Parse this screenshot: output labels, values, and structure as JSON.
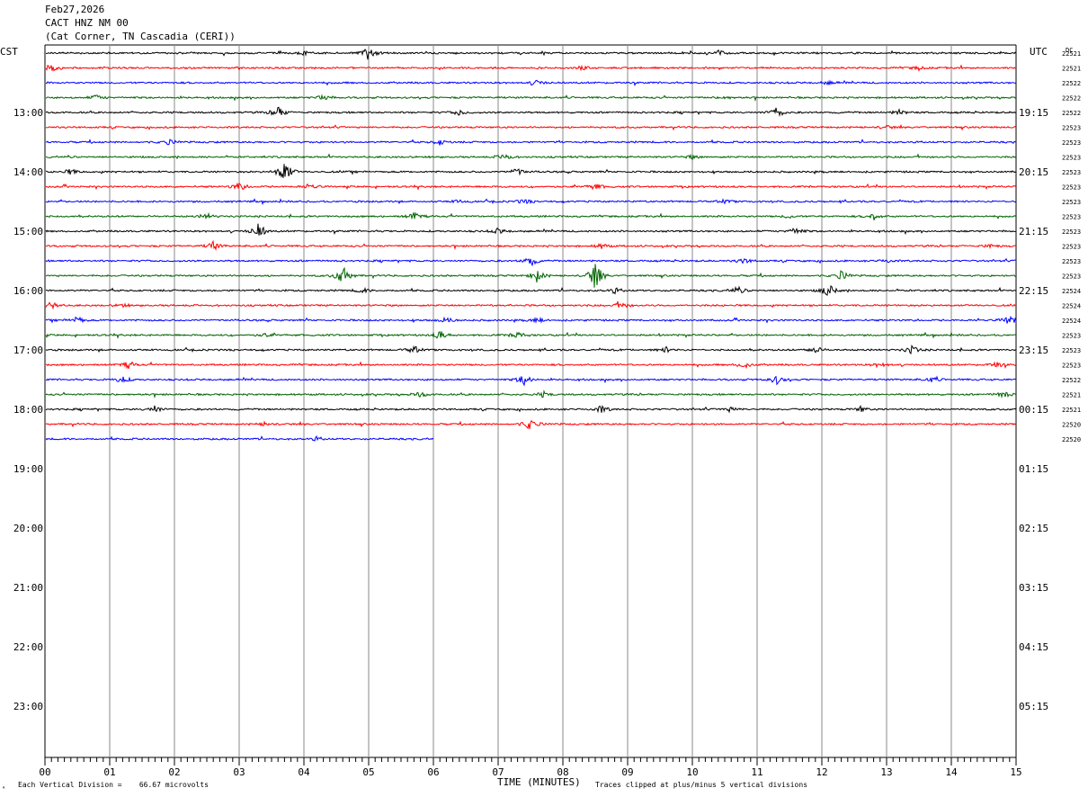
{
  "header": {
    "date": "Feb27,2026",
    "station": "CACT HNZ NM 00",
    "location": "(Cat Corner, TN Cascadia (CERI))"
  },
  "left_timezone": "CST",
  "right_timezone": "UTC",
  "dc_label": "DC",
  "footer": {
    "logo_mark": "ᴬ",
    "scale_note": "Each Vertical Division =    66.67 microvolts",
    "clip_note": "Traces clipped at plus/minus 5 vertical divisions"
  },
  "chart_data": {
    "type": "line",
    "title": "",
    "xlabel": "TIME (MINUTES)",
    "ylabel": "",
    "xlim": [
      0,
      15
    ],
    "x_ticks": [
      "00",
      "01",
      "02",
      "03",
      "04",
      "05",
      "06",
      "07",
      "08",
      "09",
      "10",
      "11",
      "12",
      "13",
      "14",
      "15"
    ],
    "y_tick_labels_left": [
      "13:00",
      "14:00",
      "15:00",
      "16:00",
      "17:00",
      "18:00",
      "19:00",
      "20:00",
      "21:00",
      "22:00",
      "23:00"
    ],
    "y_tick_labels_right": [
      "19:15",
      "20:15",
      "21:15",
      "22:15",
      "23:15",
      "00:15",
      "01:15",
      "02:15",
      "03:15",
      "04:15",
      "05:15"
    ],
    "trace_colors": [
      "#000000",
      "#ff0000",
      "#0000ff",
      "#006400"
    ],
    "traces": [
      {
        "row": 1,
        "dc": "22521",
        "minutes": 15,
        "events": [
          [
            5.0,
            8
          ],
          [
            10.4,
            3
          ],
          [
            4.0,
            2
          ]
        ]
      },
      {
        "row": 2,
        "dc": "22521",
        "minutes": 15,
        "events": [
          [
            0.1,
            5
          ],
          [
            8.3,
            2
          ],
          [
            13.5,
            2
          ]
        ]
      },
      {
        "row": 3,
        "dc": "22522",
        "minutes": 15,
        "events": [
          [
            7.6,
            3
          ],
          [
            12.1,
            2
          ]
        ]
      },
      {
        "row": 4,
        "dc": "22522",
        "minutes": 15,
        "events": [
          [
            0.8,
            3
          ],
          [
            4.3,
            3
          ],
          [
            10.5,
            2
          ]
        ]
      },
      {
        "row": 5,
        "dc": "22522",
        "minutes": 15,
        "events": [
          [
            3.6,
            7
          ],
          [
            6.4,
            3
          ],
          [
            11.3,
            6
          ],
          [
            13.2,
            3
          ]
        ]
      },
      {
        "row": 6,
        "dc": "22523",
        "minutes": 15,
        "events": [
          [
            13.0,
            2
          ]
        ]
      },
      {
        "row": 7,
        "dc": "22523",
        "minutes": 15,
        "events": [
          [
            1.9,
            3
          ],
          [
            6.1,
            3
          ]
        ]
      },
      {
        "row": 8,
        "dc": "22523",
        "minutes": 15,
        "events": [
          [
            7.1,
            4
          ],
          [
            10.0,
            2
          ]
        ]
      },
      {
        "row": 9,
        "dc": "22523",
        "minutes": 15,
        "events": [
          [
            0.4,
            3
          ],
          [
            3.7,
            14
          ],
          [
            7.3,
            4
          ]
        ]
      },
      {
        "row": 10,
        "dc": "22523",
        "minutes": 15,
        "events": [
          [
            3.0,
            5
          ],
          [
            4.1,
            3
          ],
          [
            8.5,
            5
          ]
        ]
      },
      {
        "row": 11,
        "dc": "22523",
        "minutes": 15,
        "events": [
          [
            6.4,
            2
          ],
          [
            7.4,
            3
          ],
          [
            10.5,
            2
          ]
        ]
      },
      {
        "row": 12,
        "dc": "22523",
        "minutes": 15,
        "events": [
          [
            2.5,
            3
          ],
          [
            5.7,
            4
          ],
          [
            11.5,
            2
          ],
          [
            12.8,
            4
          ]
        ]
      },
      {
        "row": 13,
        "dc": "22523",
        "minutes": 15,
        "events": [
          [
            3.3,
            9
          ],
          [
            7.0,
            3
          ],
          [
            11.6,
            4
          ]
        ]
      },
      {
        "row": 14,
        "dc": "22523",
        "minutes": 15,
        "events": [
          [
            2.6,
            5
          ],
          [
            8.6,
            3
          ],
          [
            14.6,
            2
          ]
        ]
      },
      {
        "row": 15,
        "dc": "22523",
        "minutes": 15,
        "events": [
          [
            7.5,
            6
          ],
          [
            10.8,
            3
          ],
          [
            13.0,
            2
          ]
        ]
      },
      {
        "row": 16,
        "dc": "22523",
        "minutes": 15,
        "events": [
          [
            4.6,
            12
          ],
          [
            7.6,
            7
          ],
          [
            8.5,
            16
          ],
          [
            12.3,
            5
          ]
        ]
      },
      {
        "row": 17,
        "dc": "22524",
        "minutes": 15,
        "events": [
          [
            4.9,
            3
          ],
          [
            8.8,
            3
          ],
          [
            10.7,
            4
          ],
          [
            12.1,
            8
          ]
        ]
      },
      {
        "row": 18,
        "dc": "22524",
        "minutes": 15,
        "events": [
          [
            0.1,
            4
          ],
          [
            1.2,
            2
          ],
          [
            8.9,
            4
          ]
        ]
      },
      {
        "row": 19,
        "dc": "22524",
        "minutes": 15,
        "events": [
          [
            0.5,
            4
          ],
          [
            6.2,
            3
          ],
          [
            7.6,
            3
          ],
          [
            14.9,
            6
          ]
        ]
      },
      {
        "row": 20,
        "dc": "22523",
        "minutes": 15,
        "events": [
          [
            6.1,
            5
          ],
          [
            7.3,
            4
          ],
          [
            3.4,
            2
          ]
        ]
      },
      {
        "row": 21,
        "dc": "22523",
        "minutes": 15,
        "events": [
          [
            5.7,
            4
          ],
          [
            9.6,
            3
          ],
          [
            11.9,
            4
          ],
          [
            13.4,
            5
          ]
        ]
      },
      {
        "row": 22,
        "dc": "22523",
        "minutes": 15,
        "events": [
          [
            1.3,
            4
          ],
          [
            10.8,
            4
          ],
          [
            12.9,
            3
          ],
          [
            14.7,
            3
          ]
        ]
      },
      {
        "row": 23,
        "dc": "22522",
        "minutes": 15,
        "events": [
          [
            1.2,
            4
          ],
          [
            7.4,
            6
          ],
          [
            11.3,
            5
          ],
          [
            13.7,
            3
          ]
        ]
      },
      {
        "row": 24,
        "dc": "22521",
        "minutes": 15,
        "events": [
          [
            5.8,
            3
          ],
          [
            7.7,
            3
          ],
          [
            14.8,
            4
          ]
        ]
      },
      {
        "row": 25,
        "dc": "22521",
        "minutes": 15,
        "events": [
          [
            1.7,
            4
          ],
          [
            8.6,
            4
          ],
          [
            12.6,
            3
          ],
          [
            10.6,
            3
          ]
        ]
      },
      {
        "row": 26,
        "dc": "22520",
        "minutes": 15,
        "events": [
          [
            7.5,
            7
          ],
          [
            3.4,
            2
          ]
        ]
      },
      {
        "row": 27,
        "dc": "22520",
        "minutes": 6,
        "events": [
          [
            4.2,
            2
          ]
        ]
      }
    ]
  }
}
